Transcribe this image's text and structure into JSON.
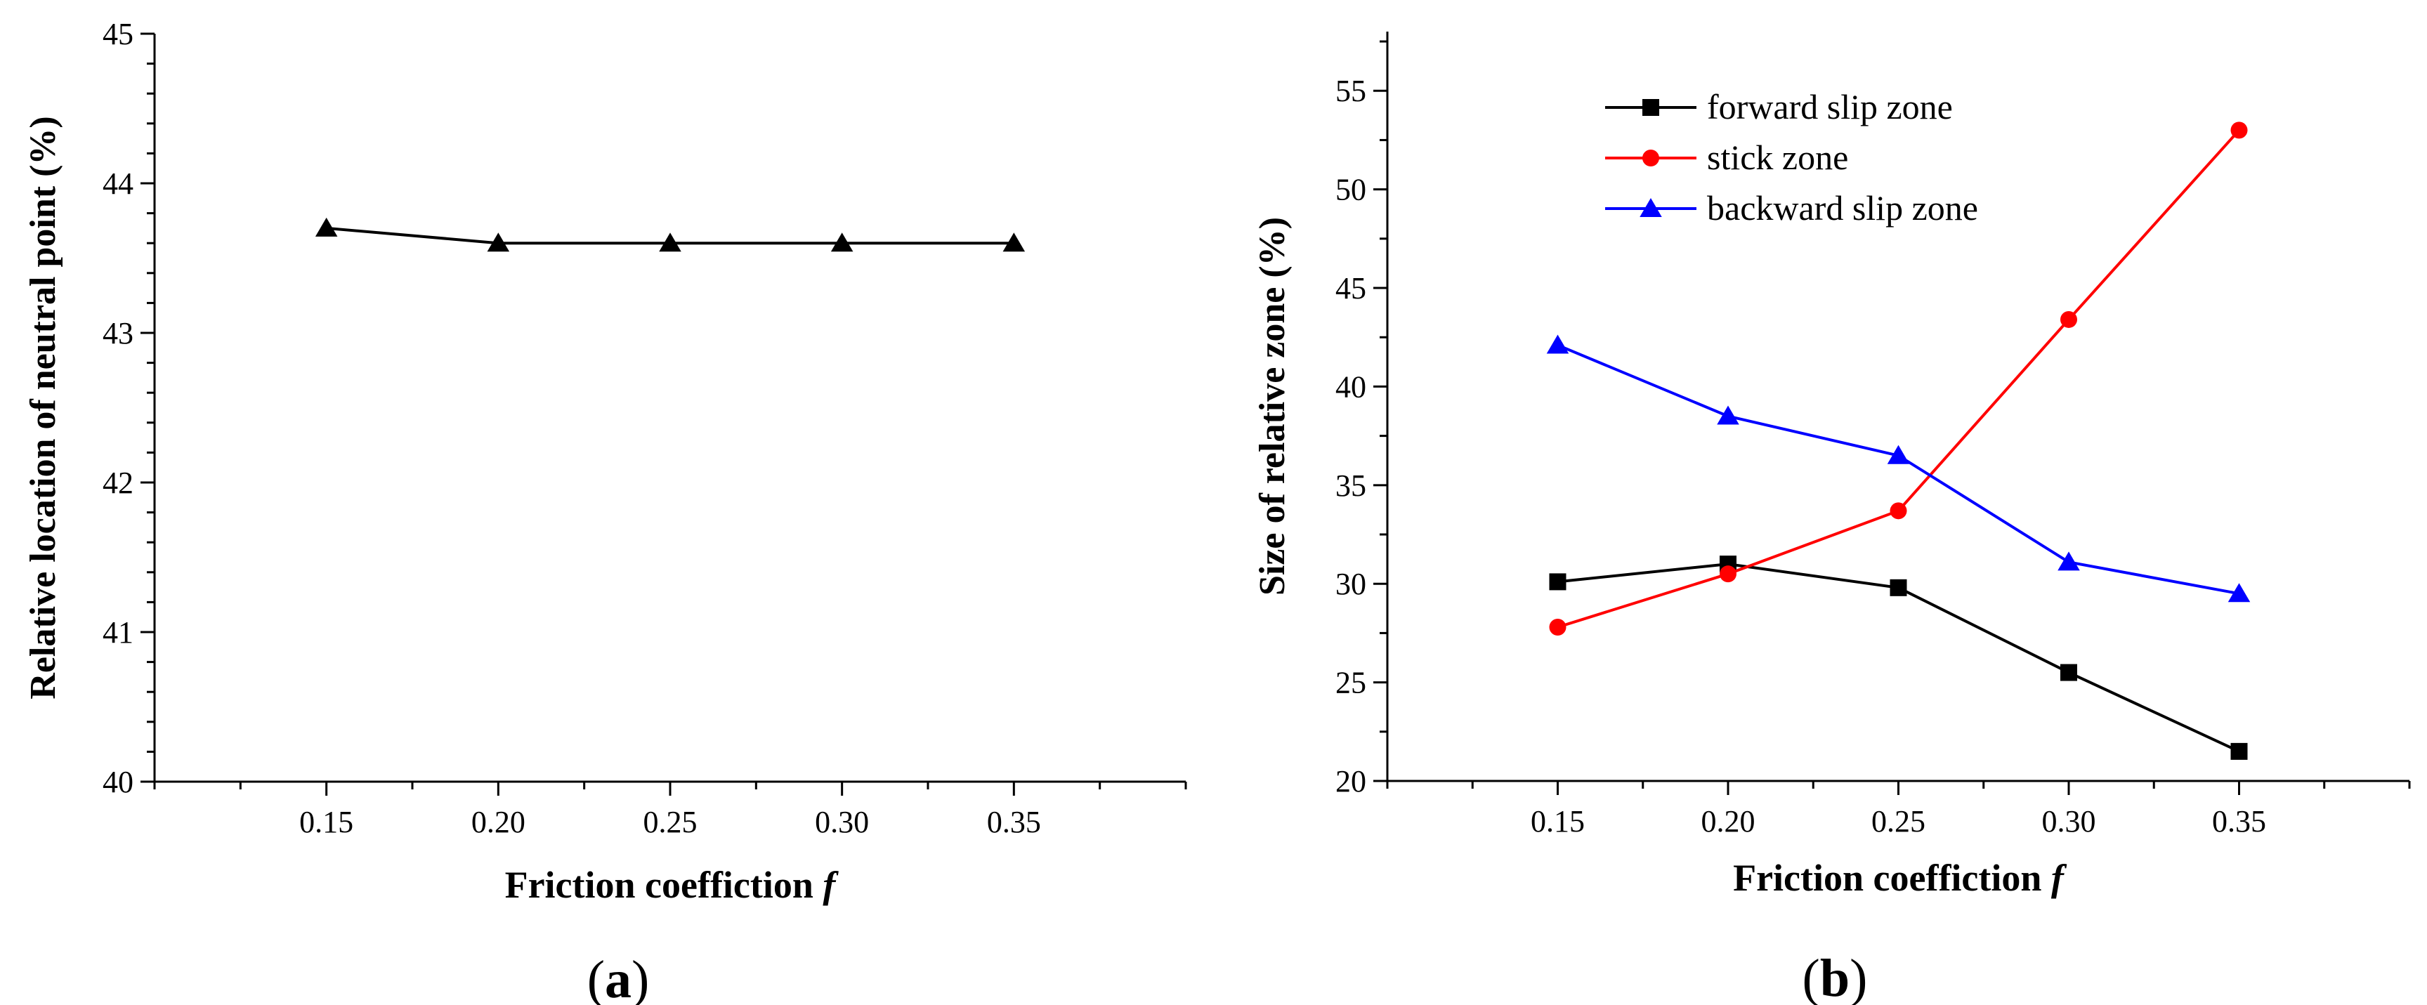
{
  "chart_data": [
    {
      "type": "line",
      "panel_label": "a",
      "title": "",
      "xlabel": "Friction coeffiction",
      "xlabel_italic": "f",
      "ylabel": "Relative location of neutral point (%)",
      "xlim": [
        0.1,
        0.4
      ],
      "ylim": [
        40,
        45
      ],
      "xticks": [
        0.15,
        0.2,
        0.25,
        0.3,
        0.35
      ],
      "xtick_labels": [
        "0.15",
        "0.20",
        "0.25",
        "0.30",
        "0.35"
      ],
      "yticks": [
        40,
        41,
        42,
        43,
        44,
        45
      ],
      "ytick_labels": [
        "40",
        "41",
        "42",
        "43",
        "44",
        "45"
      ],
      "grid": false,
      "x": [
        0.15,
        0.2,
        0.25,
        0.3,
        0.35
      ],
      "series": [
        {
          "name": "neutral point",
          "color": "#000000",
          "marker": "triangle",
          "values": [
            43.7,
            43.6,
            43.6,
            43.6,
            43.6
          ]
        }
      ]
    },
    {
      "type": "line",
      "panel_label": "b",
      "title": "",
      "xlabel": "Friction coeffiction",
      "xlabel_italic": "f",
      "ylabel": "Size of relative zone (%)",
      "xlim": [
        0.1,
        0.4
      ],
      "ylim": [
        20,
        58
      ],
      "xticks": [
        0.15,
        0.2,
        0.25,
        0.3,
        0.35
      ],
      "xtick_labels": [
        "0.15",
        "0.20",
        "0.25",
        "0.30",
        "0.35"
      ],
      "yticks": [
        20,
        25,
        30,
        35,
        40,
        45,
        50,
        55
      ],
      "ytick_labels": [
        "20",
        "25",
        "30",
        "35",
        "40",
        "45",
        "50",
        "55"
      ],
      "grid": false,
      "legend_position": "top-center",
      "x": [
        0.15,
        0.2,
        0.25,
        0.3,
        0.35
      ],
      "series": [
        {
          "name": "forward slip zone",
          "color": "#000000",
          "marker": "square",
          "values": [
            30.1,
            31.0,
            29.8,
            25.5,
            21.5
          ]
        },
        {
          "name": "stick zone",
          "color": "#ff0000",
          "marker": "circle",
          "values": [
            27.8,
            30.5,
            33.7,
            43.4,
            53.0
          ]
        },
        {
          "name": "backward slip zone",
          "color": "#0000ff",
          "marker": "triangle",
          "values": [
            42.1,
            38.5,
            36.5,
            31.1,
            29.5
          ]
        }
      ]
    }
  ]
}
